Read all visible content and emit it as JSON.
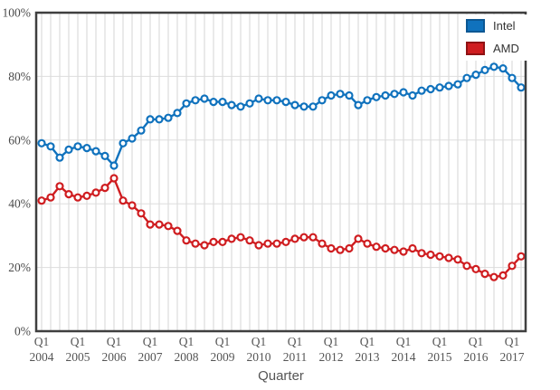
{
  "chart_data": {
    "type": "line",
    "title": "",
    "xlabel": "Quarter",
    "ylabel": "",
    "ylim": [
      0,
      100
    ],
    "grid": {
      "vertical": "every quarter",
      "horizontal": "every 20%"
    },
    "legend_position": "top-right-inside",
    "axis_border_color": "#3f3f3f",
    "vertical_grid_color": "#d4d4d4",
    "horizontal_grid_color": "#dddddd",
    "y_ticks": [
      {
        "v": 0,
        "label": "0%"
      },
      {
        "v": 20,
        "label": "20%"
      },
      {
        "v": 40,
        "label": "40%"
      },
      {
        "v": 60,
        "label": "60%"
      },
      {
        "v": 80,
        "label": "80%"
      },
      {
        "v": 100,
        "label": "100%"
      }
    ],
    "x_ticks": [
      {
        "i": 0,
        "top": "Q1",
        "year": "2004"
      },
      {
        "i": 4,
        "top": "Q1",
        "year": "2005"
      },
      {
        "i": 8,
        "top": "Q1",
        "year": "2006"
      },
      {
        "i": 12,
        "top": "Q1",
        "year": "2007"
      },
      {
        "i": 16,
        "top": "Q1",
        "year": "2008"
      },
      {
        "i": 20,
        "top": "Q1",
        "year": "2009"
      },
      {
        "i": 24,
        "top": "Q1",
        "year": "2010"
      },
      {
        "i": 28,
        "top": "Q1",
        "year": "2011"
      },
      {
        "i": 32,
        "top": "Q1",
        "year": "2012"
      },
      {
        "i": 36,
        "top": "Q1",
        "year": "2013"
      },
      {
        "i": 40,
        "top": "Q1",
        "year": "2014"
      },
      {
        "i": 44,
        "top": "Q1",
        "year": "2015"
      },
      {
        "i": 48,
        "top": "Q1",
        "year": "2016"
      },
      {
        "i": 52,
        "top": "Q1",
        "year": "2017"
      }
    ],
    "categories": [
      "2004 Q1",
      "2004 Q2",
      "2004 Q3",
      "2004 Q4",
      "2005 Q1",
      "2005 Q2",
      "2005 Q3",
      "2005 Q4",
      "2006 Q1",
      "2006 Q2",
      "2006 Q3",
      "2006 Q4",
      "2007 Q1",
      "2007 Q2",
      "2007 Q3",
      "2007 Q4",
      "2008 Q1",
      "2008 Q2",
      "2008 Q3",
      "2008 Q4",
      "2009 Q1",
      "2009 Q2",
      "2009 Q3",
      "2009 Q4",
      "2010 Q1",
      "2010 Q2",
      "2010 Q3",
      "2010 Q4",
      "2011 Q1",
      "2011 Q2",
      "2011 Q3",
      "2011 Q4",
      "2012 Q1",
      "2012 Q2",
      "2012 Q3",
      "2012 Q4",
      "2013 Q1",
      "2013 Q2",
      "2013 Q3",
      "2013 Q4",
      "2014 Q1",
      "2014 Q2",
      "2014 Q3",
      "2014 Q4",
      "2015 Q1",
      "2015 Q2",
      "2015 Q3",
      "2015 Q4",
      "2016 Q1",
      "2016 Q2",
      "2016 Q3",
      "2016 Q4",
      "2017 Q1",
      "2017 Q2"
    ],
    "series": [
      {
        "name": "Intel",
        "color": "#1072bd",
        "swatch_border": "#0b5793",
        "values": [
          59,
          58,
          54.5,
          57,
          58,
          57.5,
          56.5,
          55,
          52,
          59,
          60.5,
          63,
          66.5,
          66.5,
          67,
          68.5,
          71.5,
          72.5,
          73,
          72,
          72,
          71,
          70.5,
          71.5,
          73,
          72.5,
          72.5,
          72,
          71,
          70.5,
          70.5,
          72.5,
          74,
          74.5,
          74,
          71,
          72.5,
          73.5,
          74,
          74.5,
          75,
          74,
          75.5,
          76,
          76.5,
          77,
          77.5,
          79.5,
          80.5,
          82,
          83,
          82.5,
          79.5,
          76.5
        ]
      },
      {
        "name": "AMD",
        "color": "#cf1d20",
        "swatch_border": "#8f1214",
        "values": [
          41,
          42,
          45.5,
          43,
          42,
          42.5,
          43.5,
          45,
          48,
          41,
          39.5,
          37,
          33.5,
          33.5,
          33,
          31.5,
          28.5,
          27.5,
          27,
          28,
          28,
          29,
          29.5,
          28.5,
          27,
          27.5,
          27.5,
          28,
          29,
          29.5,
          29.5,
          27.5,
          26,
          25.5,
          26,
          29,
          27.5,
          26.5,
          26,
          25.5,
          25,
          26,
          24.5,
          24,
          23.5,
          23,
          22.5,
          20.5,
          19.5,
          18,
          17,
          17.5,
          20.5,
          23.5
        ]
      }
    ]
  }
}
